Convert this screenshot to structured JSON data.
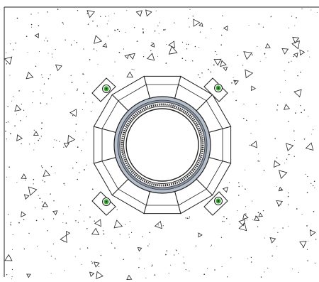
{
  "drawing": {
    "background_color": "#ffffff",
    "line_color": "#222222",
    "ring_color": "#8a96a8",
    "bolt_color": "#3aaa35",
    "hatch_pattern": "concrete-stipple-with-triangles"
  },
  "elements": {
    "panel": "concrete-panel",
    "opening": "circular-opening",
    "segmented_collar": "segmented-collar",
    "anchor_bolts": [
      "anchor-bolt-top-left",
      "anchor-bolt-top-right",
      "anchor-bolt-bottom-left",
      "anchor-bolt-bottom-right"
    ]
  }
}
